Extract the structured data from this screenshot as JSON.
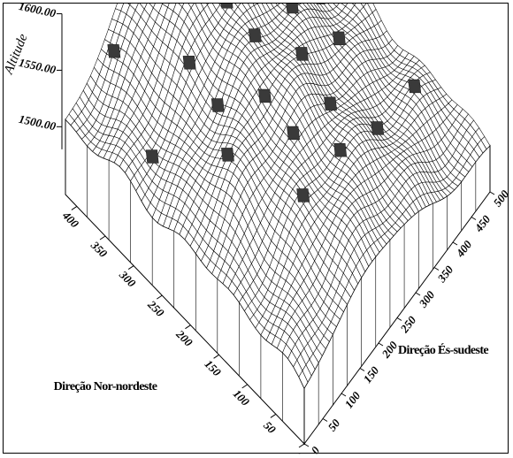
{
  "chart_data": {
    "type": "surface3d",
    "zlabel": "Altitude",
    "xlabel": "Direção Nor-nordeste",
    "ylabel": "Direção És-sudeste",
    "z_ticks": [
      "1500.00",
      "1550.00",
      "1600.00"
    ],
    "x_ticks": [
      "0",
      "50",
      "100",
      "150",
      "200",
      "250",
      "300",
      "350",
      "400"
    ],
    "y_ticks": [
      "0",
      "50",
      "100",
      "150",
      "200",
      "250",
      "300",
      "350",
      "400",
      "450",
      "500"
    ],
    "xlim": [
      0,
      420
    ],
    "ylim": [
      0,
      500
    ],
    "zlim": [
      1440,
      1620
    ],
    "grid_resolution": [
      44,
      52
    ],
    "sample_points": [
      [
        400,
        100
      ],
      [
        400,
        200
      ],
      [
        400,
        300
      ],
      [
        400,
        400
      ],
      [
        300,
        50
      ],
      [
        300,
        150
      ],
      [
        300,
        250
      ],
      [
        300,
        350
      ],
      [
        300,
        450
      ],
      [
        200,
        100
      ],
      [
        200,
        200
      ],
      [
        200,
        300
      ],
      [
        200,
        400
      ],
      [
        100,
        150
      ],
      [
        100,
        250
      ],
      [
        100,
        350
      ],
      [
        100,
        450
      ],
      [
        250,
        150
      ],
      [
        250,
        250
      ],
      [
        250,
        350
      ],
      [
        150,
        200
      ],
      [
        150,
        300
      ],
      [
        350,
        200
      ],
      [
        350,
        300
      ]
    ]
  }
}
